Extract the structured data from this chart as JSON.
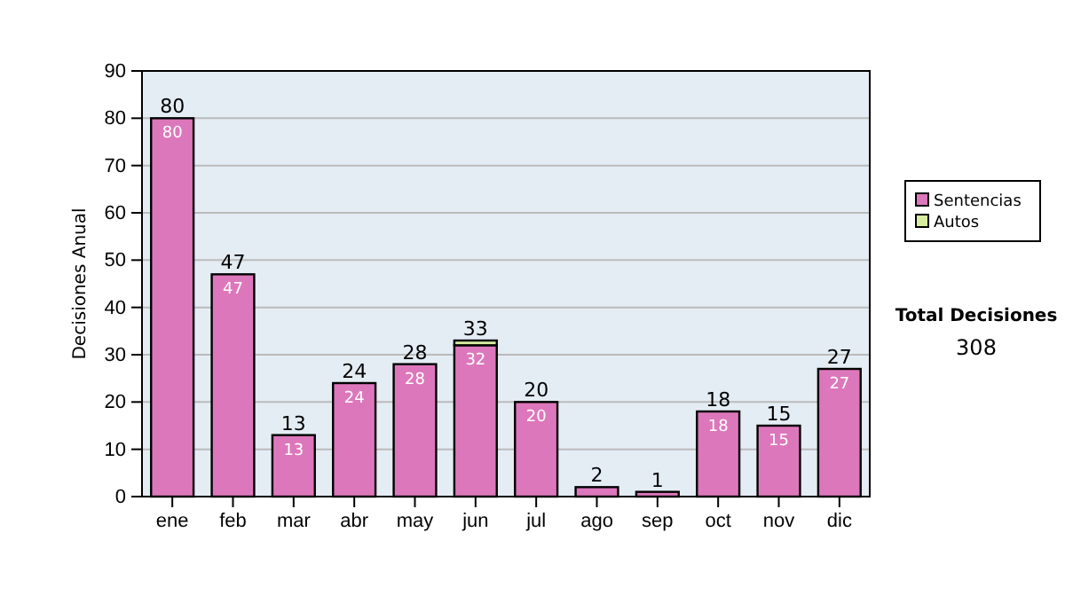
{
  "chart_data": {
    "type": "bar",
    "stacked": true,
    "ylabel": "Decisiones Anual",
    "categories": [
      "ene",
      "feb",
      "mar",
      "abr",
      "may",
      "jun",
      "jul",
      "ago",
      "sep",
      "oct",
      "nov",
      "dic"
    ],
    "series": [
      {
        "name": "Sentencias",
        "color": "#dd77bb",
        "values": [
          80,
          47,
          13,
          24,
          28,
          32,
          20,
          2,
          1,
          18,
          15,
          27
        ],
        "value_labels": [
          "80",
          "47",
          "13",
          "24",
          "28",
          "32",
          "20",
          null,
          null,
          "18",
          "15",
          "27"
        ]
      },
      {
        "name": "Autos",
        "color": "#d8eca0",
        "values": [
          0,
          0,
          0,
          0,
          0,
          1,
          0,
          0,
          0,
          0,
          0,
          0
        ]
      }
    ],
    "totals": [
      "80",
      "47",
      "13",
      "24",
      "28",
      "33",
      "20",
      "2",
      "1",
      "18",
      "15",
      "27"
    ],
    "ylim": [
      0,
      90
    ],
    "yticks": [
      0,
      10,
      20,
      30,
      40,
      50,
      60,
      70,
      80,
      90
    ],
    "grid": "y",
    "legend": "right",
    "annotations": [
      "Total Decisiones",
      "308"
    ]
  }
}
